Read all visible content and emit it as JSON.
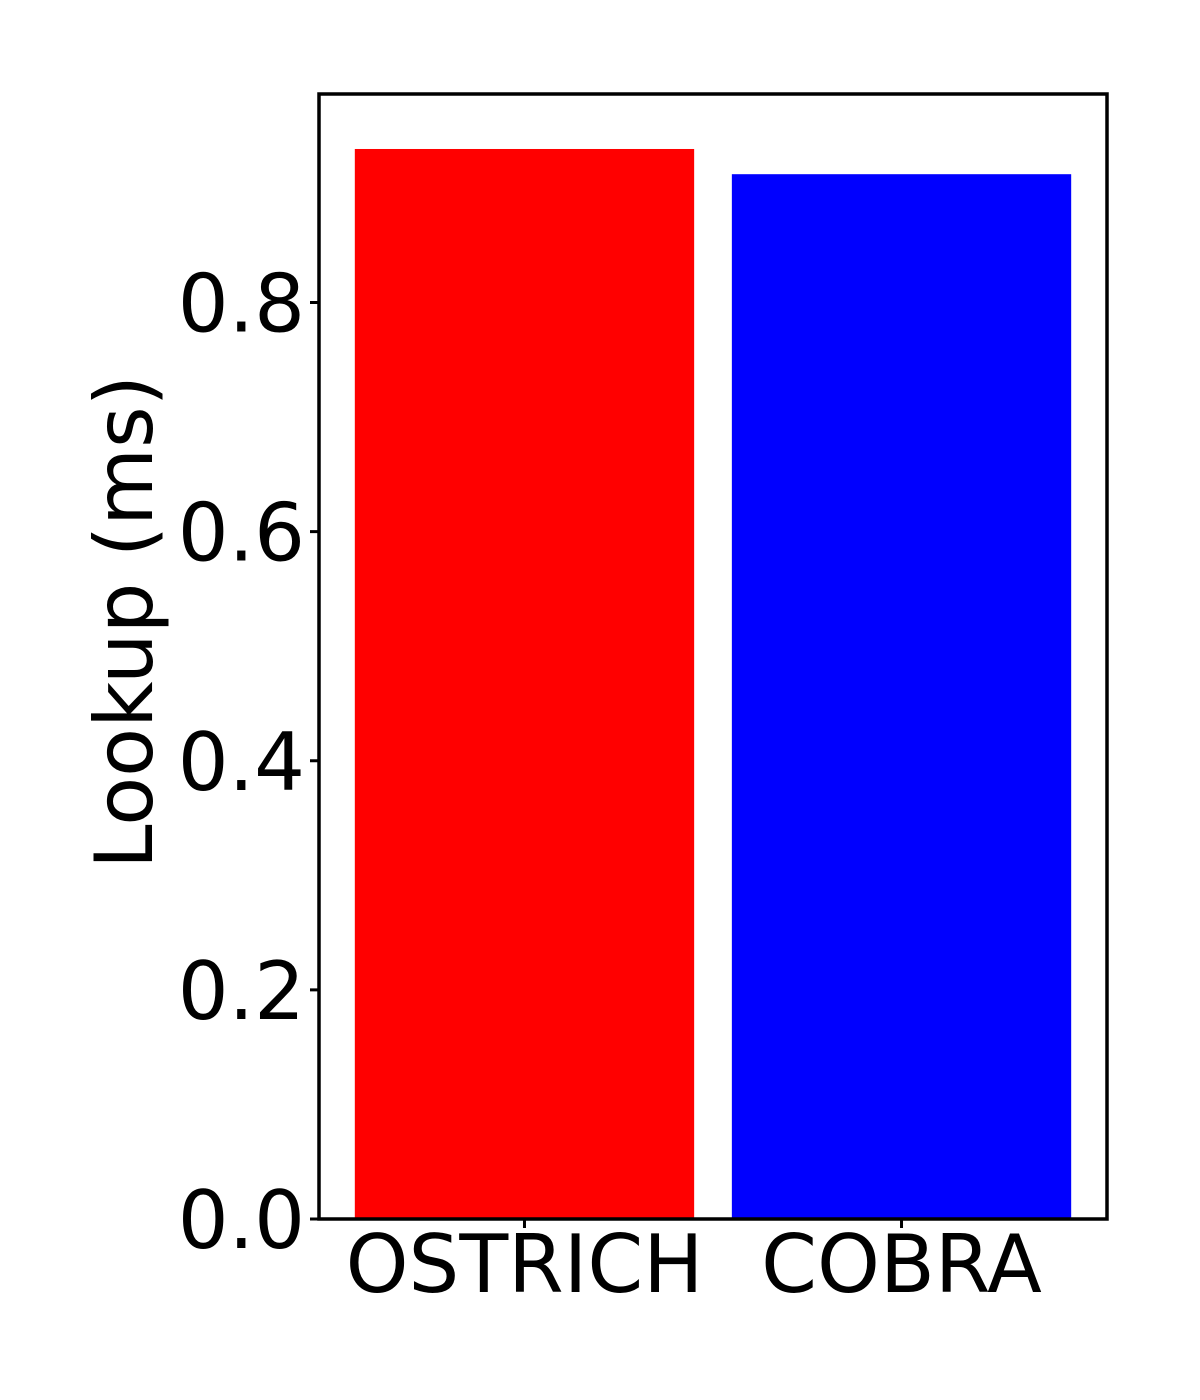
{
  "chart_data": {
    "type": "bar",
    "categories": [
      "OSTRICH",
      "COBRA"
    ],
    "values": [
      0.934,
      0.912
    ],
    "colors": [
      "#ff0000",
      "#0000ff"
    ],
    "xlabel": "",
    "ylabel": "Lookup (ms)",
    "ylim": [
      0,
      0.982
    ],
    "yticks": [
      0.0,
      0.2,
      0.4,
      0.6,
      0.8
    ],
    "ytick_labels": [
      "0.0",
      "0.2",
      "0.4",
      "0.6",
      "0.8"
    ],
    "grid": false
  }
}
